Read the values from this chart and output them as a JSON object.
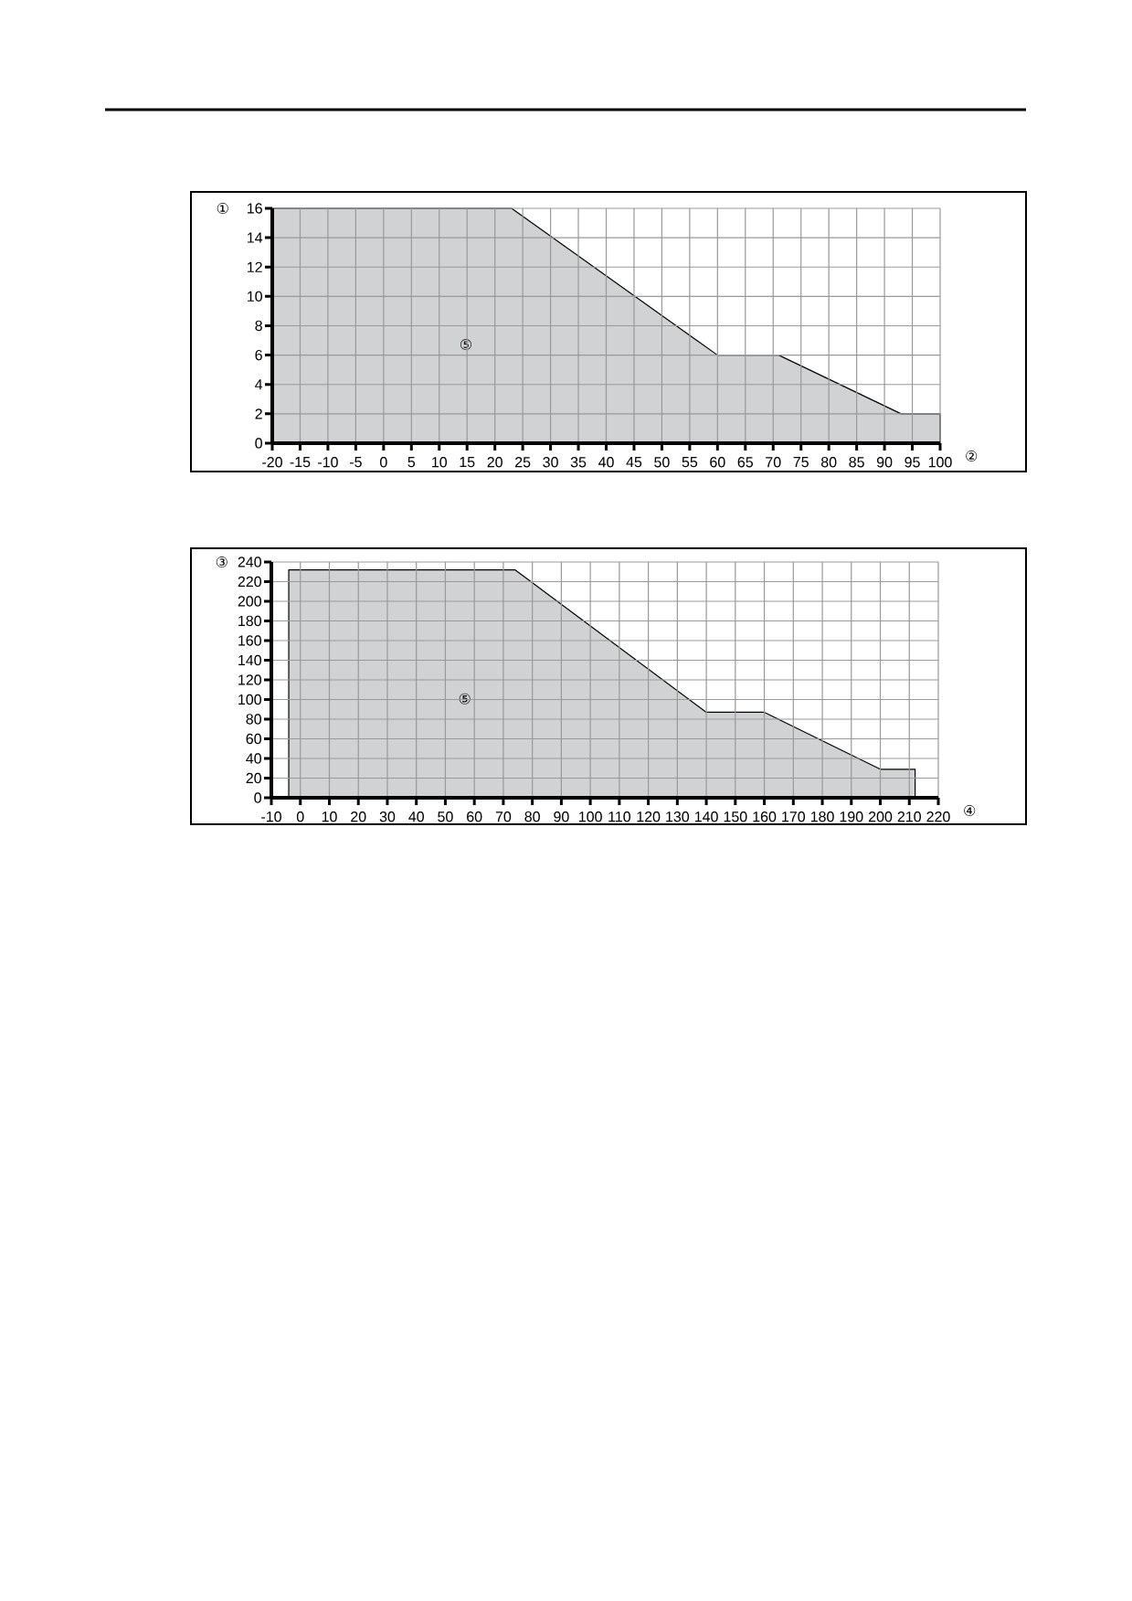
{
  "chart_data": [
    {
      "type": "area",
      "x": [
        -20,
        23,
        60,
        71,
        93,
        100
      ],
      "values": [
        16,
        16,
        6,
        6,
        2,
        2
      ],
      "color": "#d1d2d4",
      "xlim": [
        -20,
        100
      ],
      "ylim": [
        0,
        16
      ],
      "xticks": [
        -20,
        -15,
        -10,
        -5,
        0,
        5,
        10,
        15,
        20,
        25,
        30,
        35,
        40,
        45,
        50,
        55,
        60,
        65,
        70,
        75,
        80,
        85,
        90,
        95,
        100
      ],
      "yticks": [
        0,
        2,
        4,
        6,
        8,
        10,
        12,
        14,
        16
      ],
      "grid": true,
      "xlabel": "②",
      "ylabel": "①",
      "annotations": [
        "⑤"
      ]
    },
    {
      "type": "area",
      "x": [
        -4,
        74,
        140,
        160,
        200,
        212
      ],
      "values": [
        232,
        232,
        87,
        87,
        29,
        29
      ],
      "color": "#d1d2d4",
      "xlim": [
        -10,
        220
      ],
      "ylim": [
        0,
        240
      ],
      "xticks": [
        -10,
        0,
        10,
        20,
        30,
        40,
        50,
        60,
        70,
        80,
        90,
        100,
        110,
        120,
        130,
        140,
        150,
        160,
        170,
        180,
        190,
        200,
        210,
        220
      ],
      "yticks": [
        0,
        20,
        40,
        60,
        80,
        100,
        120,
        140,
        160,
        180,
        200,
        220,
        240
      ],
      "grid": true,
      "xlabel": "④",
      "ylabel": "③",
      "annotations": [
        "⑤"
      ]
    }
  ]
}
